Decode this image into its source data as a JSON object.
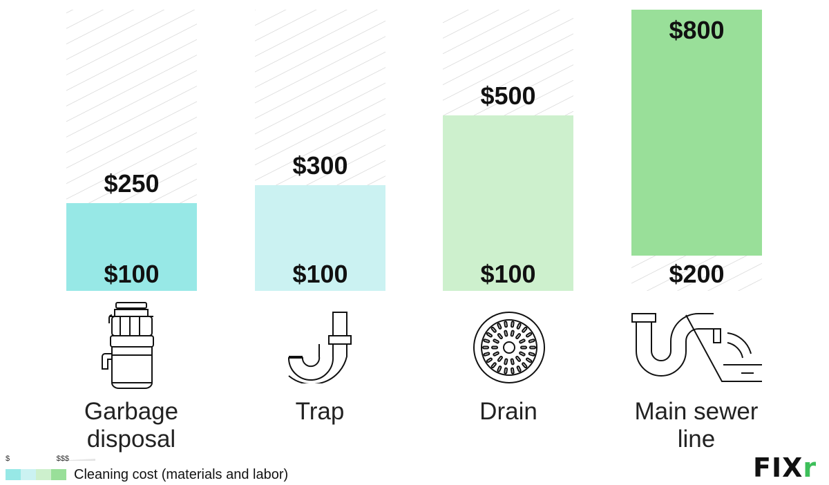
{
  "chart_data": {
    "type": "bar",
    "subtype": "floating-range",
    "categories": [
      "Garbage\ndisposal",
      "Trap",
      "Drain",
      "Main sewer\nline"
    ],
    "ranges": [
      {
        "low": 100,
        "high": 250,
        "low_label": "$100",
        "high_label": "$250",
        "color": "#97e8e6"
      },
      {
        "low": 100,
        "high": 300,
        "low_label": "$100",
        "high_label": "$300",
        "color": "#cbf2f2"
      },
      {
        "low": 100,
        "high": 500,
        "low_label": "$100",
        "high_label": "$500",
        "color": "#cdf0cd"
      },
      {
        "low": 200,
        "high": 800,
        "low_label": "$200",
        "high_label": "$800",
        "color": "#99df99"
      }
    ],
    "ylim": [
      100,
      850
    ],
    "grid": false,
    "background_pattern": "diagonal-hatch"
  },
  "icons": [
    "garbage-disposal-icon",
    "trap-pipe-icon",
    "drain-icon",
    "sewer-line-icon"
  ],
  "legend": {
    "scale_low": "$",
    "scale_high": "$$$",
    "swatch_colors": [
      "#97e8e6",
      "#cbf2f2",
      "#cdf0cd",
      "#99df99"
    ],
    "label": "Cleaning cost (materials and labor)"
  },
  "brand": {
    "name_main": "FIX",
    "name_accent": "r",
    "accent_color": "#3dbf5a"
  }
}
